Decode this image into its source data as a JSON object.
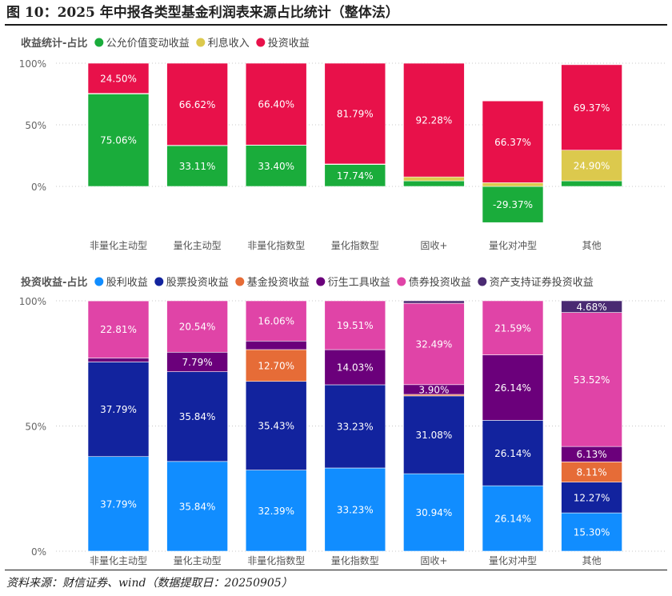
{
  "figure": {
    "title": "图 10：2025 年中报各类型基金利润表来源占比统计（整体法）",
    "source": "资料来源：财信证券、wind（数据提取日：20250905）"
  },
  "chart_data": [
    {
      "type": "bar",
      "stacked": true,
      "title": "收益统计-占比",
      "categories": [
        "非量化主动型",
        "量化主动型",
        "非量化指数型",
        "量化指数型",
        "固收+",
        "量化对冲型",
        "其他"
      ],
      "series": [
        {
          "name": "公允价值变动收益",
          "color": "#1aac3b",
          "values": [
            75.06,
            33.11,
            33.4,
            17.74,
            4.5,
            -29.37,
            4.5
          ],
          "labels": [
            "75.06%",
            "33.11%",
            "33.40%",
            "17.74%",
            "",
            "-29.37%",
            ""
          ]
        },
        {
          "name": "利息收入",
          "color": "#dcc94d",
          "values": [
            0.44,
            0.27,
            0.2,
            0.47,
            3.2,
            3.0,
            24.9
          ],
          "labels": [
            "",
            "",
            "",
            "",
            "",
            "",
            "24.90%"
          ]
        },
        {
          "name": "投资收益",
          "color": "#e8114a",
          "values": [
            24.5,
            66.62,
            66.4,
            81.79,
            92.28,
            66.37,
            69.37
          ],
          "labels": [
            "24.50%",
            "66.62%",
            "66.40%",
            "81.79%",
            "92.28%",
            "66.37%",
            "69.37%"
          ]
        }
      ],
      "yticks": [
        "100%",
        "50%",
        "0%"
      ],
      "ylim": [
        -30,
        100
      ],
      "grid": true,
      "legend": "top-left"
    },
    {
      "type": "bar",
      "stacked": true,
      "title": "投资收益-占比",
      "categories": [
        "非量化主动型",
        "量化主动型",
        "非量化指数型",
        "量化指数型",
        "固收+",
        "量化对冲型",
        "其他"
      ],
      "series": [
        {
          "name": "股利收益",
          "color": "#118dff",
          "values": [
            37.79,
            35.84,
            32.39,
            33.23,
            30.94,
            26.14,
            15.3
          ],
          "labels": [
            "37.79%",
            "35.84%",
            "32.39%",
            "33.23%",
            "30.94%",
            "26.14%",
            "15.30%"
          ]
        },
        {
          "name": "股票投资收益",
          "color": "#12239e",
          "values": [
            37.79,
            35.84,
            35.43,
            33.23,
            31.08,
            26.14,
            12.27
          ],
          "labels": [
            "37.79%",
            "35.84%",
            "35.43%",
            "33.23%",
            "31.08%",
            "26.14%",
            "12.27%"
          ]
        },
        {
          "name": "基金投资收益",
          "color": "#e66c37",
          "values": [
            0.0,
            0.0,
            12.7,
            0.0,
            0.6,
            0.0,
            8.11
          ],
          "labels": [
            "",
            "",
            "12.70%",
            "",
            "",
            "",
            "8.11%"
          ]
        },
        {
          "name": "衍生工具收益",
          "color": "#6b007b",
          "values": [
            1.6,
            7.79,
            3.42,
            14.03,
            3.9,
            26.14,
            6.13
          ],
          "labels": [
            "",
            "7.79%",
            "",
            "14.03%",
            "3.90%",
            "26.14%",
            "6.13%"
          ]
        },
        {
          "name": "债券投资收益",
          "color": "#e044a7",
          "values": [
            22.81,
            20.54,
            16.06,
            19.51,
            32.49,
            21.59,
            53.52
          ],
          "labels": [
            "22.81%",
            "20.54%",
            "16.06%",
            "19.51%",
            "32.49%",
            "21.59%",
            "53.52%"
          ]
        },
        {
          "name": "资产支持证券投资收益",
          "color": "#4a2a72",
          "values": [
            0.01,
            0.0,
            0.0,
            0.0,
            1.0,
            0.0,
            4.68
          ],
          "labels": [
            "",
            "",
            "",
            "",
            "",
            "",
            "4.68%"
          ]
        }
      ],
      "yticks": [
        "100%",
        "50%",
        "0%"
      ],
      "ylim": [
        0,
        100
      ],
      "grid": true,
      "legend": "top-left"
    }
  ]
}
